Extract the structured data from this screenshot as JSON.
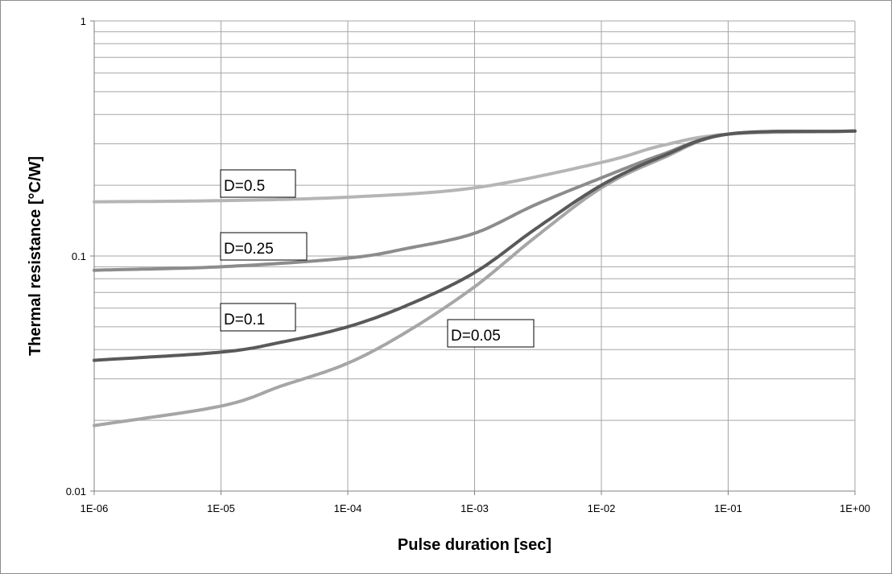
{
  "chart_data": {
    "type": "line",
    "title": "",
    "xlabel": "Pulse duration [sec]",
    "ylabel": "Thermal resistance [°C/W]",
    "x_scale": "log",
    "y_scale": "log",
    "xlim": [
      1e-06,
      1
    ],
    "ylim": [
      0.01,
      1
    ],
    "grid": true,
    "legend": "none",
    "x_ticks": [
      1e-06,
      1e-05,
      0.0001,
      0.001,
      0.01,
      0.1,
      1
    ],
    "x_tick_labels": [
      "1E-06",
      "1E-05",
      "1E-04",
      "1E-03",
      "1E-02",
      "1E-01",
      "1E+00"
    ],
    "y_ticks": [
      0.01,
      0.1,
      1
    ],
    "y_tick_labels": [
      "0.01",
      "0.1",
      "1"
    ],
    "series": [
      {
        "name": "D=0.5",
        "color": "#b5b5b5",
        "x": [
          1e-06,
          1e-05,
          0.0001,
          0.001,
          0.01,
          0.03,
          0.1,
          1
        ],
        "y": [
          0.17,
          0.172,
          0.178,
          0.195,
          0.25,
          0.295,
          0.33,
          0.34
        ]
      },
      {
        "name": "D=0.25",
        "color": "#8c8c8c",
        "x": [
          1e-06,
          1e-05,
          0.0001,
          0.0003,
          0.001,
          0.003,
          0.01,
          0.03,
          0.1,
          1
        ],
        "y": [
          0.087,
          0.09,
          0.098,
          0.108,
          0.125,
          0.165,
          0.215,
          0.27,
          0.33,
          0.34
        ]
      },
      {
        "name": "D=0.1",
        "color": "#595959",
        "x": [
          1e-06,
          1e-05,
          3e-05,
          0.0001,
          0.0003,
          0.001,
          0.003,
          0.01,
          0.03,
          0.1,
          1
        ],
        "y": [
          0.036,
          0.039,
          0.043,
          0.05,
          0.062,
          0.085,
          0.13,
          0.2,
          0.265,
          0.33,
          0.34
        ]
      },
      {
        "name": "D=0.05",
        "color": "#a6a6a6",
        "x": [
          1e-06,
          1e-05,
          3e-05,
          0.0001,
          0.0003,
          0.001,
          0.003,
          0.01,
          0.03,
          0.1,
          1
        ],
        "y": [
          0.019,
          0.023,
          0.028,
          0.035,
          0.048,
          0.074,
          0.12,
          0.195,
          0.26,
          0.33,
          0.34
        ]
      }
    ],
    "annotations": [
      {
        "text": "D=0.5",
        "series": "D=0.5"
      },
      {
        "text": "D=0.25",
        "series": "D=0.25"
      },
      {
        "text": "D=0.1",
        "series": "D=0.1"
      },
      {
        "text": "D=0.05",
        "series": "D=0.05"
      }
    ],
    "grid_color": "#a6a6a6",
    "axis_color": "#808080"
  }
}
